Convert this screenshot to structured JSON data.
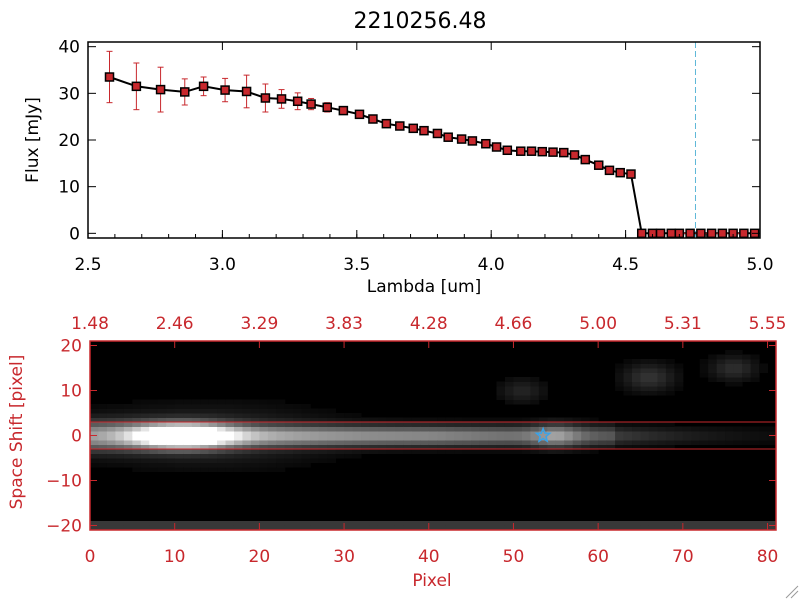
{
  "chart_data": [
    {
      "type": "line",
      "title": "2210256.48",
      "xlabel": "Lambda [um]",
      "ylabel": "Flux [mJy]",
      "xlim": [
        2.5,
        5.0
      ],
      "ylim": [
        -1,
        41
      ],
      "x_ticks": [
        "2.5",
        "3.0",
        "3.5",
        "4.0",
        "4.5",
        "5.0"
      ],
      "y_ticks": [
        "0",
        "10",
        "20",
        "30",
        "40"
      ],
      "vline_x": 4.76,
      "vline_color": "#5fb8d8",
      "line_color": "#000000",
      "marker_color": "#c8282d",
      "series": [
        {
          "x": [
            2.58,
            2.68,
            2.77,
            2.86,
            2.93,
            3.01,
            3.09,
            3.16,
            3.22,
            3.28,
            3.33,
            3.39,
            3.45,
            3.51,
            3.56,
            3.61,
            3.66,
            3.71,
            3.75,
            3.8,
            3.84,
            3.89,
            3.93,
            3.98,
            4.02,
            4.06,
            4.11,
            4.15,
            4.19,
            4.23,
            4.27,
            4.31,
            4.35,
            4.4,
            4.44,
            4.48,
            4.52,
            4.56,
            4.6,
            4.63,
            4.67,
            4.7,
            4.74,
            4.78,
            4.82,
            4.86,
            4.9,
            4.94,
            4.98
          ],
          "y": [
            33.5,
            31.5,
            30.8,
            30.3,
            31.5,
            30.7,
            30.4,
            29.0,
            28.8,
            28.3,
            27.7,
            27.0,
            26.3,
            25.5,
            24.5,
            23.5,
            23.0,
            22.5,
            22.0,
            21.4,
            20.6,
            20.2,
            19.8,
            19.2,
            18.5,
            17.8,
            17.6,
            17.6,
            17.5,
            17.4,
            17.3,
            16.8,
            15.8,
            14.6,
            13.5,
            13.0,
            12.7,
            0.0,
            0.0,
            0.0,
            0.0,
            0.0,
            0.0,
            0.0,
            0.0,
            0.0,
            0.0,
            0.0,
            0.0
          ],
          "err": [
            5.5,
            5.0,
            4.8,
            2.8,
            2.0,
            2.5,
            3.5,
            3.0,
            2.0,
            1.8,
            1.2,
            1.0,
            0.8,
            0.8,
            0.6,
            0.5,
            0.5,
            0.5,
            0.5,
            0.5,
            0.5,
            0.5,
            0.5,
            0.5,
            0.5,
            0.5,
            0.5,
            0.5,
            0.5,
            0.5,
            0.5,
            0.5,
            0.5,
            0.5,
            0.5,
            0.5,
            0.5,
            0,
            0,
            0,
            0,
            0,
            0,
            0,
            0,
            0,
            0,
            0,
            0
          ]
        }
      ]
    },
    {
      "type": "heatmap",
      "xlabel": "Pixel",
      "ylabel": "Space Shift [pixel]",
      "xlim": [
        0,
        81
      ],
      "ylim": [
        -21,
        21
      ],
      "x_ticks": [
        "0",
        "10",
        "20",
        "30",
        "40",
        "50",
        "60",
        "70",
        "80"
      ],
      "y_ticks": [
        "−20",
        "−10",
        "0",
        "10",
        "20"
      ],
      "top_ticks": [
        "1.48",
        "2.46",
        "3.29",
        "3.83",
        "4.28",
        "4.66",
        "5.00",
        "5.31",
        "5.55"
      ],
      "frame_color": "#c8282d",
      "hlines": [
        3,
        -3
      ],
      "star_marker": {
        "x": 53.5,
        "y": 0,
        "color": "#3aa3e8"
      }
    }
  ]
}
